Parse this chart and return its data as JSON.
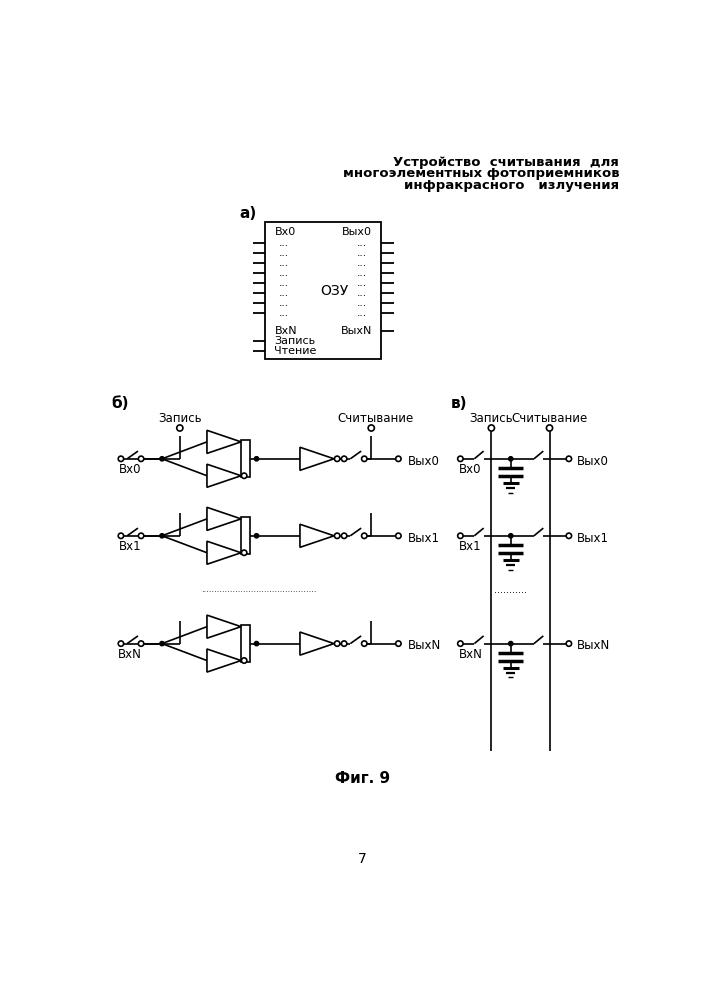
{
  "title_line1": "Устройство  считывания  для",
  "title_line2": "многоэлементных фотоприемников",
  "title_line3": "инфракрасного   излучения",
  "bg_color": "#ffffff"
}
